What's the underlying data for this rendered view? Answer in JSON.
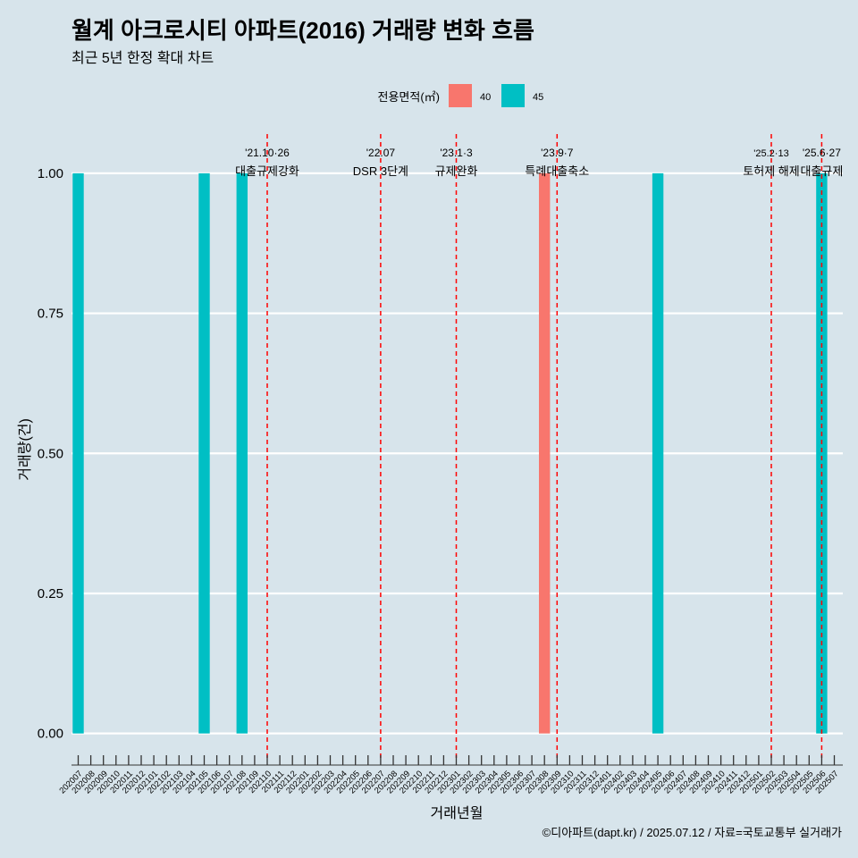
{
  "chart_data": {
    "type": "bar",
    "title": "월계 아크로시티 아파트(2016) 거래량 변화 흐름",
    "subtitle": "최근 5년 한정 확대 차트",
    "xlabel": "거래년월",
    "ylabel": "거래량(건)",
    "caption": "©디아파트(dapt.kr) / 2025.07.12 / 자료=국토교통부 실거래가",
    "ylim": [
      -0.05,
      1.07
    ],
    "yticks": [
      "0.00",
      "0.25",
      "0.50",
      "0.75",
      "1.00"
    ],
    "ytick_values": [
      0,
      0.25,
      0.5,
      0.75,
      1.0
    ],
    "grid": true,
    "legend": {
      "title": "전용면적(㎡)",
      "placement": "top",
      "entries": [
        {
          "label": "40",
          "color": "#f8766d"
        },
        {
          "label": "45",
          "color": "#00bfc4"
        }
      ]
    },
    "categories": [
      "202007",
      "202008",
      "202009",
      "202010",
      "202011",
      "202012",
      "202101",
      "202102",
      "202103",
      "202104",
      "202105",
      "202106",
      "202107",
      "202108",
      "202109",
      "202110",
      "202111",
      "202112",
      "202201",
      "202202",
      "202203",
      "202204",
      "202205",
      "202206",
      "202207",
      "202208",
      "202209",
      "202210",
      "202211",
      "202212",
      "202301",
      "202302",
      "202303",
      "202304",
      "202305",
      "202306",
      "202307",
      "202308",
      "202309",
      "202310",
      "202311",
      "202312",
      "202401",
      "202402",
      "202403",
      "202404",
      "202405",
      "202406",
      "202407",
      "202408",
      "202409",
      "202410",
      "202411",
      "202412",
      "202501",
      "202502",
      "202503",
      "202504",
      "202505",
      "202506",
      "202507"
    ],
    "bars": [
      {
        "x": "202007",
        "series": "45",
        "value": 1
      },
      {
        "x": "202105",
        "series": "45",
        "value": 1
      },
      {
        "x": "202108",
        "series": "45",
        "value": 1
      },
      {
        "x": "202308",
        "series": "40",
        "value": 1
      },
      {
        "x": "202405",
        "series": "45",
        "value": 1
      },
      {
        "x": "202506",
        "series": "45",
        "value": 1
      }
    ],
    "events": [
      {
        "x": "202110",
        "date": "'21.10·26",
        "label": "대출규제강화"
      },
      {
        "x": "202207",
        "date": "'22.07",
        "label": "DSR 3단계"
      },
      {
        "x": "202301",
        "date": "'23.1·3",
        "label": "규제완화"
      },
      {
        "x": "202309",
        "date": "'23.9·7",
        "label": "특례대출축소"
      },
      {
        "x": "202502",
        "date": "'25.2·13",
        "label": "토허제 해제"
      },
      {
        "x": "202506",
        "date": "'25.6·27",
        "label": "대출규제"
      }
    ],
    "event_line_color": "#ff0000"
  }
}
